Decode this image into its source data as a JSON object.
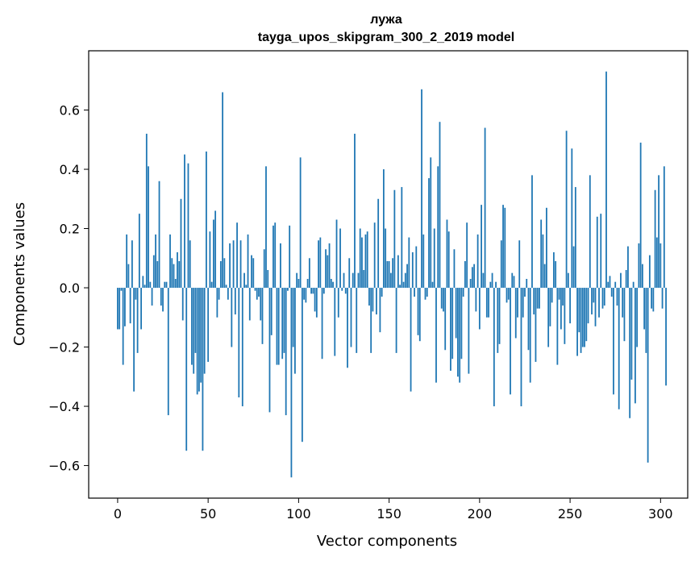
{
  "chart_data": {
    "type": "bar",
    "title": "лужа",
    "subtitle": "tayga_upos_skipgram_300_2_2019 model",
    "xlabel": "Vector components",
    "ylabel": "Components values",
    "xlim": [
      -16,
      315
    ],
    "ylim": [
      -0.71,
      0.8
    ],
    "x_ticks": [
      0,
      50,
      100,
      150,
      200,
      250,
      300
    ],
    "x_tick_labels": [
      "0",
      "50",
      "100",
      "150",
      "200",
      "250",
      "300"
    ],
    "y_ticks": [
      0.6,
      0.4,
      0.2,
      0.0,
      -0.2,
      -0.4,
      -0.6
    ],
    "y_tick_labels": [
      "0.6",
      "0.4",
      "0.2",
      "0.0",
      "−0.2",
      "−0.4",
      "−0.6"
    ],
    "grid": false,
    "bar_color": "#1f77b4",
    "series": [
      {
        "values": [
          -0.14,
          -0.14,
          -0.01,
          -0.26,
          -0.13,
          0.18,
          0.08,
          -0.12,
          0.16,
          -0.35,
          -0.04,
          -0.22,
          0.25,
          -0.14,
          0.04,
          0.01,
          0.52,
          0.41,
          0.02,
          -0.06,
          0.11,
          0.18,
          0.09,
          0.36,
          -0.06,
          -0.08,
          0.02,
          0.02,
          -0.43,
          0.18,
          0.1,
          0.08,
          0.03,
          0.12,
          0.09,
          0.3,
          -0.11,
          0.45,
          -0.55,
          0.42,
          0.16,
          -0.26,
          -0.29,
          -0.22,
          -0.36,
          -0.35,
          -0.32,
          -0.55,
          -0.29,
          0.46,
          -0.25,
          0.19,
          0.02,
          0.23,
          0.26,
          -0.1,
          -0.04,
          0.09,
          0.66,
          0.1,
          0.01,
          -0.04,
          0.15,
          -0.2,
          0.16,
          -0.09,
          0.22,
          -0.37,
          0.16,
          -0.4,
          0.05,
          0.01,
          0.18,
          -0.11,
          0.11,
          0.1,
          -0.01,
          -0.04,
          -0.03,
          -0.11,
          -0.19,
          0.13,
          0.41,
          0.06,
          -0.42,
          -0.16,
          0.21,
          0.22,
          -0.26,
          -0.26,
          0.15,
          -0.24,
          -0.22,
          -0.43,
          -0.01,
          0.21,
          -0.64,
          -0.2,
          -0.29,
          0.05,
          0.03,
          0.44,
          -0.52,
          -0.04,
          -0.05,
          0.03,
          0.1,
          -0.02,
          -0.02,
          -0.08,
          -0.1,
          0.16,
          0.17,
          -0.24,
          -0.02,
          0.13,
          0.11,
          0.15,
          0.03,
          0.02,
          -0.23,
          0.23,
          -0.1,
          0.2,
          -0.01,
          0.05,
          -0.02,
          -0.27,
          0.1,
          -0.2,
          0.05,
          0.52,
          -0.22,
          0.05,
          0.2,
          0.17,
          0.06,
          0.18,
          0.19,
          -0.06,
          -0.22,
          -0.08,
          0.22,
          -0.09,
          0.3,
          -0.15,
          -0.03,
          0.4,
          0.2,
          0.09,
          0.09,
          0.05,
          0.1,
          0.33,
          -0.22,
          0.11,
          0.01,
          0.34,
          0.02,
          0.05,
          0.08,
          0.17,
          -0.35,
          0.12,
          -0.03,
          0.14,
          -0.16,
          -0.18,
          0.67,
          0.18,
          -0.04,
          -0.03,
          0.37,
          0.44,
          0.02,
          0.2,
          -0.32,
          0.41,
          0.56,
          -0.07,
          -0.08,
          -0.21,
          0.23,
          0.19,
          -0.28,
          -0.24,
          0.13,
          -0.17,
          -0.3,
          -0.32,
          -0.24,
          -0.03,
          0.09,
          0.22,
          -0.29,
          0.03,
          0.07,
          0.08,
          -0.08,
          0.18,
          -0.14,
          0.28,
          0.05,
          0.54,
          -0.1,
          -0.1,
          0.02,
          0.05,
          -0.4,
          0.02,
          -0.22,
          -0.19,
          0.16,
          0.28,
          0.27,
          -0.05,
          -0.04,
          -0.36,
          0.05,
          0.04,
          -0.17,
          -0.1,
          0.16,
          -0.4,
          -0.1,
          -0.03,
          0.03,
          -0.21,
          -0.32,
          0.38,
          -0.09,
          -0.25,
          -0.07,
          -0.07,
          0.23,
          0.18,
          0.08,
          0.27,
          -0.2,
          -0.13,
          -0.05,
          0.12,
          0.09,
          -0.26,
          -0.04,
          -0.14,
          -0.06,
          -0.19,
          0.53,
          0.05,
          -0.12,
          0.47,
          0.14,
          0.34,
          -0.23,
          -0.15,
          -0.22,
          -0.2,
          -0.2,
          -0.18,
          -0.12,
          0.38,
          -0.09,
          -0.05,
          -0.13,
          0.24,
          -0.1,
          0.25,
          -0.07,
          -0.06,
          0.73,
          0.02,
          0.04,
          -0.03,
          -0.36,
          0.02,
          -0.06,
          -0.41,
          0.05,
          -0.1,
          -0.18,
          0.06,
          0.14,
          -0.44,
          -0.31,
          0.02,
          -0.39,
          -0.2,
          0.15,
          0.49,
          0.08,
          -0.14,
          -0.22,
          -0.59,
          0.11,
          -0.07,
          -0.08,
          0.33,
          0.17,
          0.38,
          0.15,
          -0.07,
          0.41,
          -0.33
        ]
      }
    ]
  }
}
